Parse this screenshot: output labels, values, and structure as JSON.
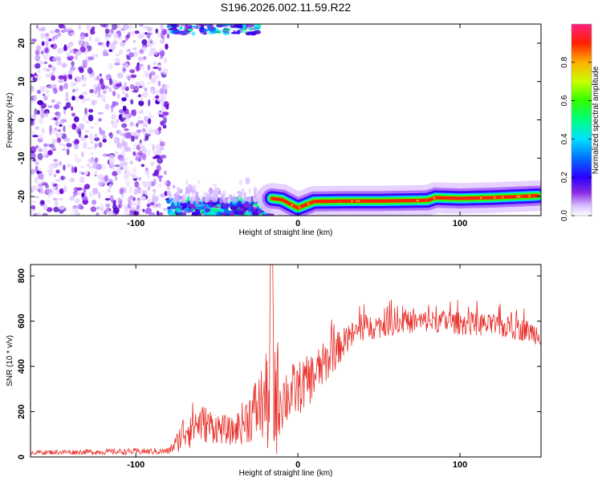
{
  "colors": {
    "background": "#ffffff",
    "axis": "#000000",
    "snr_line": "#e8302a",
    "noise_dot": "#8a2be2",
    "colormap": [
      "#ffffff",
      "#e9d8ff",
      "#a64dff",
      "#4b00d6",
      "#0000ff",
      "#00c8ff",
      "#00ff66",
      "#c8ff00",
      "#ffb000",
      "#ff2000",
      "#ff2080"
    ]
  },
  "chart_data": [
    {
      "type": "heatmap",
      "title": "S196.2026.002.11.59.R22",
      "xlabel": "Height of straight line (km)",
      "ylabel": "Frequency (Hz)",
      "xlim": [
        -165,
        150
      ],
      "ylim": [
        -25,
        25
      ],
      "xticks": [
        -100,
        0,
        100
      ],
      "xtick_labels": [
        "-100",
        "0",
        "100"
      ],
      "yticks": [
        -20,
        -10,
        0,
        10,
        20
      ],
      "ytick_labels": [
        "-20",
        "-10",
        "0",
        "10",
        "20"
      ],
      "colorbar": {
        "label": "Normalized spectral amplitude",
        "range": [
          0,
          1
        ],
        "ticks": [
          0.0,
          0.2,
          0.4,
          0.6,
          0.8
        ],
        "tick_labels": [
          "0.0",
          "0.2",
          "0.4",
          "0.6",
          "0.8"
        ]
      },
      "features": {
        "noise_region_km": [
          -165,
          -80
        ],
        "carrier_track": {
          "x": [
            -16,
            -10,
            0,
            10,
            30,
            50,
            80,
            85,
            100,
            120,
            148
          ],
          "y": [
            -20.5,
            -20.8,
            -23,
            -21.3,
            -21.2,
            -21.2,
            -21,
            -20.3,
            -20.5,
            -20.3,
            -19.8
          ]
        },
        "strong_peaks_bottom_km": [
          -78,
          -16
        ],
        "strong_peaks_top_km": [
          -80,
          -40
        ]
      }
    },
    {
      "type": "line",
      "xlabel": "Height of straight line (km)",
      "ylabel": "SNR (10 * v/v)",
      "xlim": [
        -165,
        150
      ],
      "ylim": [
        0,
        850
      ],
      "xticks": [
        -100,
        0,
        100
      ],
      "xtick_labels": [
        "-100",
        "0",
        "100"
      ],
      "yticks": [
        0,
        200,
        400,
        600,
        800
      ],
      "ytick_labels": [
        "0",
        "200",
        "400",
        "600",
        "800"
      ],
      "series": [
        {
          "name": "SNR",
          "envelope_x": [
            -165,
            -80,
            -75,
            -68,
            -60,
            -50,
            -40,
            -30,
            -20,
            -16,
            -10,
            0,
            10,
            20,
            30,
            40,
            60,
            80,
            100,
            120,
            140,
            150
          ],
          "envelope_mean": [
            20,
            25,
            60,
            140,
            150,
            130,
            110,
            180,
            250,
            300,
            260,
            300,
            360,
            440,
            520,
            570,
            590,
            600,
            590,
            580,
            560,
            540
          ],
          "envelope_amp": [
            10,
            15,
            40,
            110,
            90,
            70,
            60,
            120,
            190,
            400,
            150,
            120,
            110,
            90,
            60,
            60,
            50,
            50,
            50,
            50,
            50,
            50
          ]
        }
      ]
    }
  ]
}
